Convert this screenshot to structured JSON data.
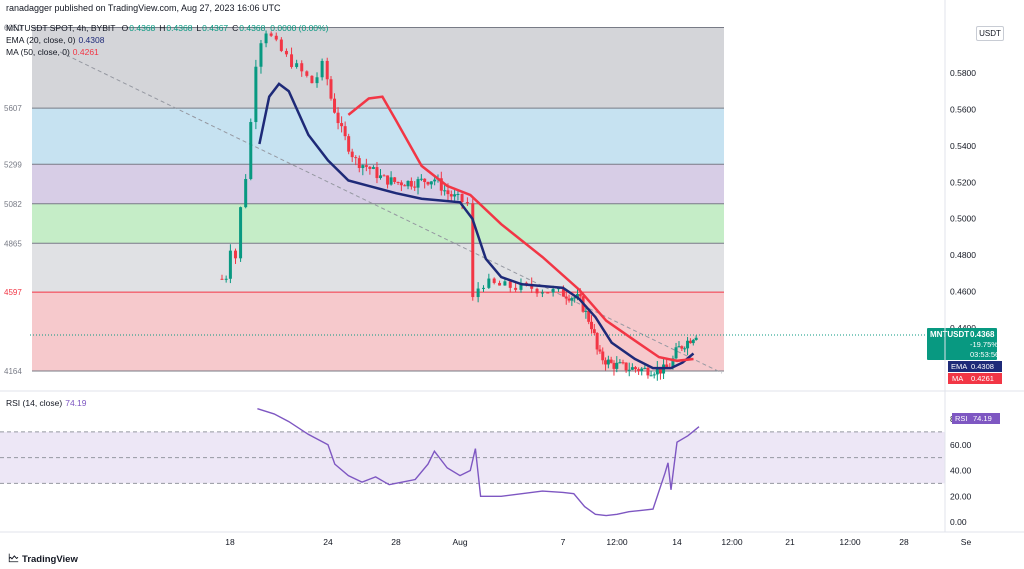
{
  "header": {
    "published": "ranadagger published on TradingView.com, Aug 27, 2023 16:06 UTC",
    "symbol": "MNTUSDT SPOT, 4h, BYBIT",
    "ohlc": [
      {
        "k": "O",
        "v": "0.4368"
      },
      {
        "k": "H",
        "v": "0.4368"
      },
      {
        "k": "L",
        "v": "0.4367"
      },
      {
        "k": "C",
        "v": "0.4368"
      },
      {
        "k": "",
        "v": "0.0000 (0.00%)"
      }
    ],
    "ema_label": "EMA (20, close, 0)",
    "ema_value": "0.4308",
    "ma_label": "MA (50, close, 0)",
    "ma_value": "0.4261",
    "rsi_label": "RSI (14, close)",
    "rsi_value": "74.19",
    "currency_button": "USDT"
  },
  "badges": {
    "symbol": "MNTUSDT",
    "price": "0.4368",
    "change": "-19.75%",
    "countdown": "03:53:56",
    "ema_tag": "EMA",
    "ema_value": "0.4308",
    "ma_tag": "MA",
    "ma_value": "0.4261",
    "rsi_tag": "RSI",
    "rsi_value": "74.19"
  },
  "colors": {
    "up": "#089981",
    "down": "#f23645",
    "ema": "#1e2a78",
    "ma": "#f23645",
    "rsi": "#7e57c2",
    "fib_bands": [
      "#d4d5d9",
      "#c6e2f1",
      "#d7cde6",
      "#c5edc7",
      "#e0e1e4",
      "#f6c9cc"
    ]
  },
  "fib_levels": [
    "6050",
    "5607",
    "5299",
    "5082",
    "4865",
    "4597",
    "4164"
  ],
  "footer": {
    "brand": "TradingView"
  },
  "chart_data": {
    "type": "candlestick",
    "price_axis": {
      "ticks": [
        "0.5800",
        "0.5600",
        "0.5400",
        "0.5200",
        "0.5000",
        "0.4800",
        "0.4600",
        "0.4400"
      ],
      "range": [
        0.41,
        0.605
      ]
    },
    "time_axis": [
      "18",
      "24",
      "28",
      "Aug",
      "7",
      "12:00",
      "14",
      "12:00",
      "21",
      "12:00",
      "28",
      "Se"
    ],
    "fibonacci_levels": [
      0.605,
      0.5607,
      0.5299,
      0.5082,
      0.4865,
      0.4597,
      0.4164
    ],
    "ema20_path": [
      [
        0.3,
        0.541
      ],
      [
        0.4,
        0.567
      ],
      [
        0.5,
        0.574
      ],
      [
        0.6,
        0.57
      ],
      [
        0.8,
        0.546
      ],
      [
        1.0,
        0.532
      ],
      [
        1.3,
        0.521
      ],
      [
        1.6,
        0.518
      ],
      [
        2.0,
        0.514
      ],
      [
        2.4,
        0.511
      ],
      [
        2.7,
        0.51
      ],
      [
        3.0,
        0.509
      ],
      [
        3.12,
        0.5
      ],
      [
        3.25,
        0.478
      ],
      [
        3.4,
        0.468
      ],
      [
        3.6,
        0.464
      ],
      [
        4.0,
        0.462
      ],
      [
        4.3,
        0.456
      ],
      [
        4.6,
        0.446
      ],
      [
        4.9,
        0.432
      ],
      [
        5.3,
        0.423
      ],
      [
        5.6,
        0.418
      ],
      [
        5.9,
        0.418
      ],
      [
        6.1,
        0.421
      ],
      [
        6.3,
        0.426
      ]
    ],
    "ma50_path": [
      [
        1.3,
        0.557
      ],
      [
        1.6,
        0.566
      ],
      [
        1.8,
        0.567
      ],
      [
        2.0,
        0.554
      ],
      [
        2.4,
        0.529
      ],
      [
        2.8,
        0.518
      ],
      [
        3.1,
        0.513
      ],
      [
        3.4,
        0.497
      ],
      [
        3.8,
        0.479
      ],
      [
        4.3,
        0.461
      ],
      [
        4.8,
        0.444
      ],
      [
        5.3,
        0.433
      ],
      [
        5.7,
        0.424
      ],
      [
        6.0,
        0.422
      ],
      [
        6.3,
        0.423
      ]
    ],
    "rsi": {
      "ticks": [
        "80.00",
        "60.00",
        "40.00",
        "20.00",
        "0.00"
      ],
      "range": [
        0,
        90
      ],
      "bands": [
        30,
        70
      ],
      "path": [
        [
          0.28,
          88
        ],
        [
          0.45,
          84
        ],
        [
          0.6,
          78
        ],
        [
          0.8,
          68
        ],
        [
          1.0,
          60
        ],
        [
          1.1,
          45
        ],
        [
          1.3,
          36
        ],
        [
          1.5,
          31
        ],
        [
          1.7,
          35
        ],
        [
          1.9,
          29
        ],
        [
          2.1,
          31
        ],
        [
          2.3,
          33
        ],
        [
          2.5,
          45
        ],
        [
          2.6,
          55
        ],
        [
          2.8,
          42
        ],
        [
          3.0,
          36
        ],
        [
          3.1,
          40
        ],
        [
          3.15,
          57
        ],
        [
          3.2,
          20
        ],
        [
          3.4,
          20
        ],
        [
          3.6,
          22
        ],
        [
          3.8,
          24
        ],
        [
          4.0,
          23
        ],
        [
          4.2,
          22
        ],
        [
          4.4,
          12
        ],
        [
          4.6,
          6
        ],
        [
          4.8,
          5
        ],
        [
          5.0,
          6
        ],
        [
          5.2,
          8
        ],
        [
          5.4,
          9
        ],
        [
          5.6,
          10
        ],
        [
          5.8,
          38
        ],
        [
          5.85,
          46
        ],
        [
          5.9,
          25
        ],
        [
          6.0,
          62
        ],
        [
          6.2,
          67
        ],
        [
          6.4,
          74
        ]
      ]
    }
  }
}
